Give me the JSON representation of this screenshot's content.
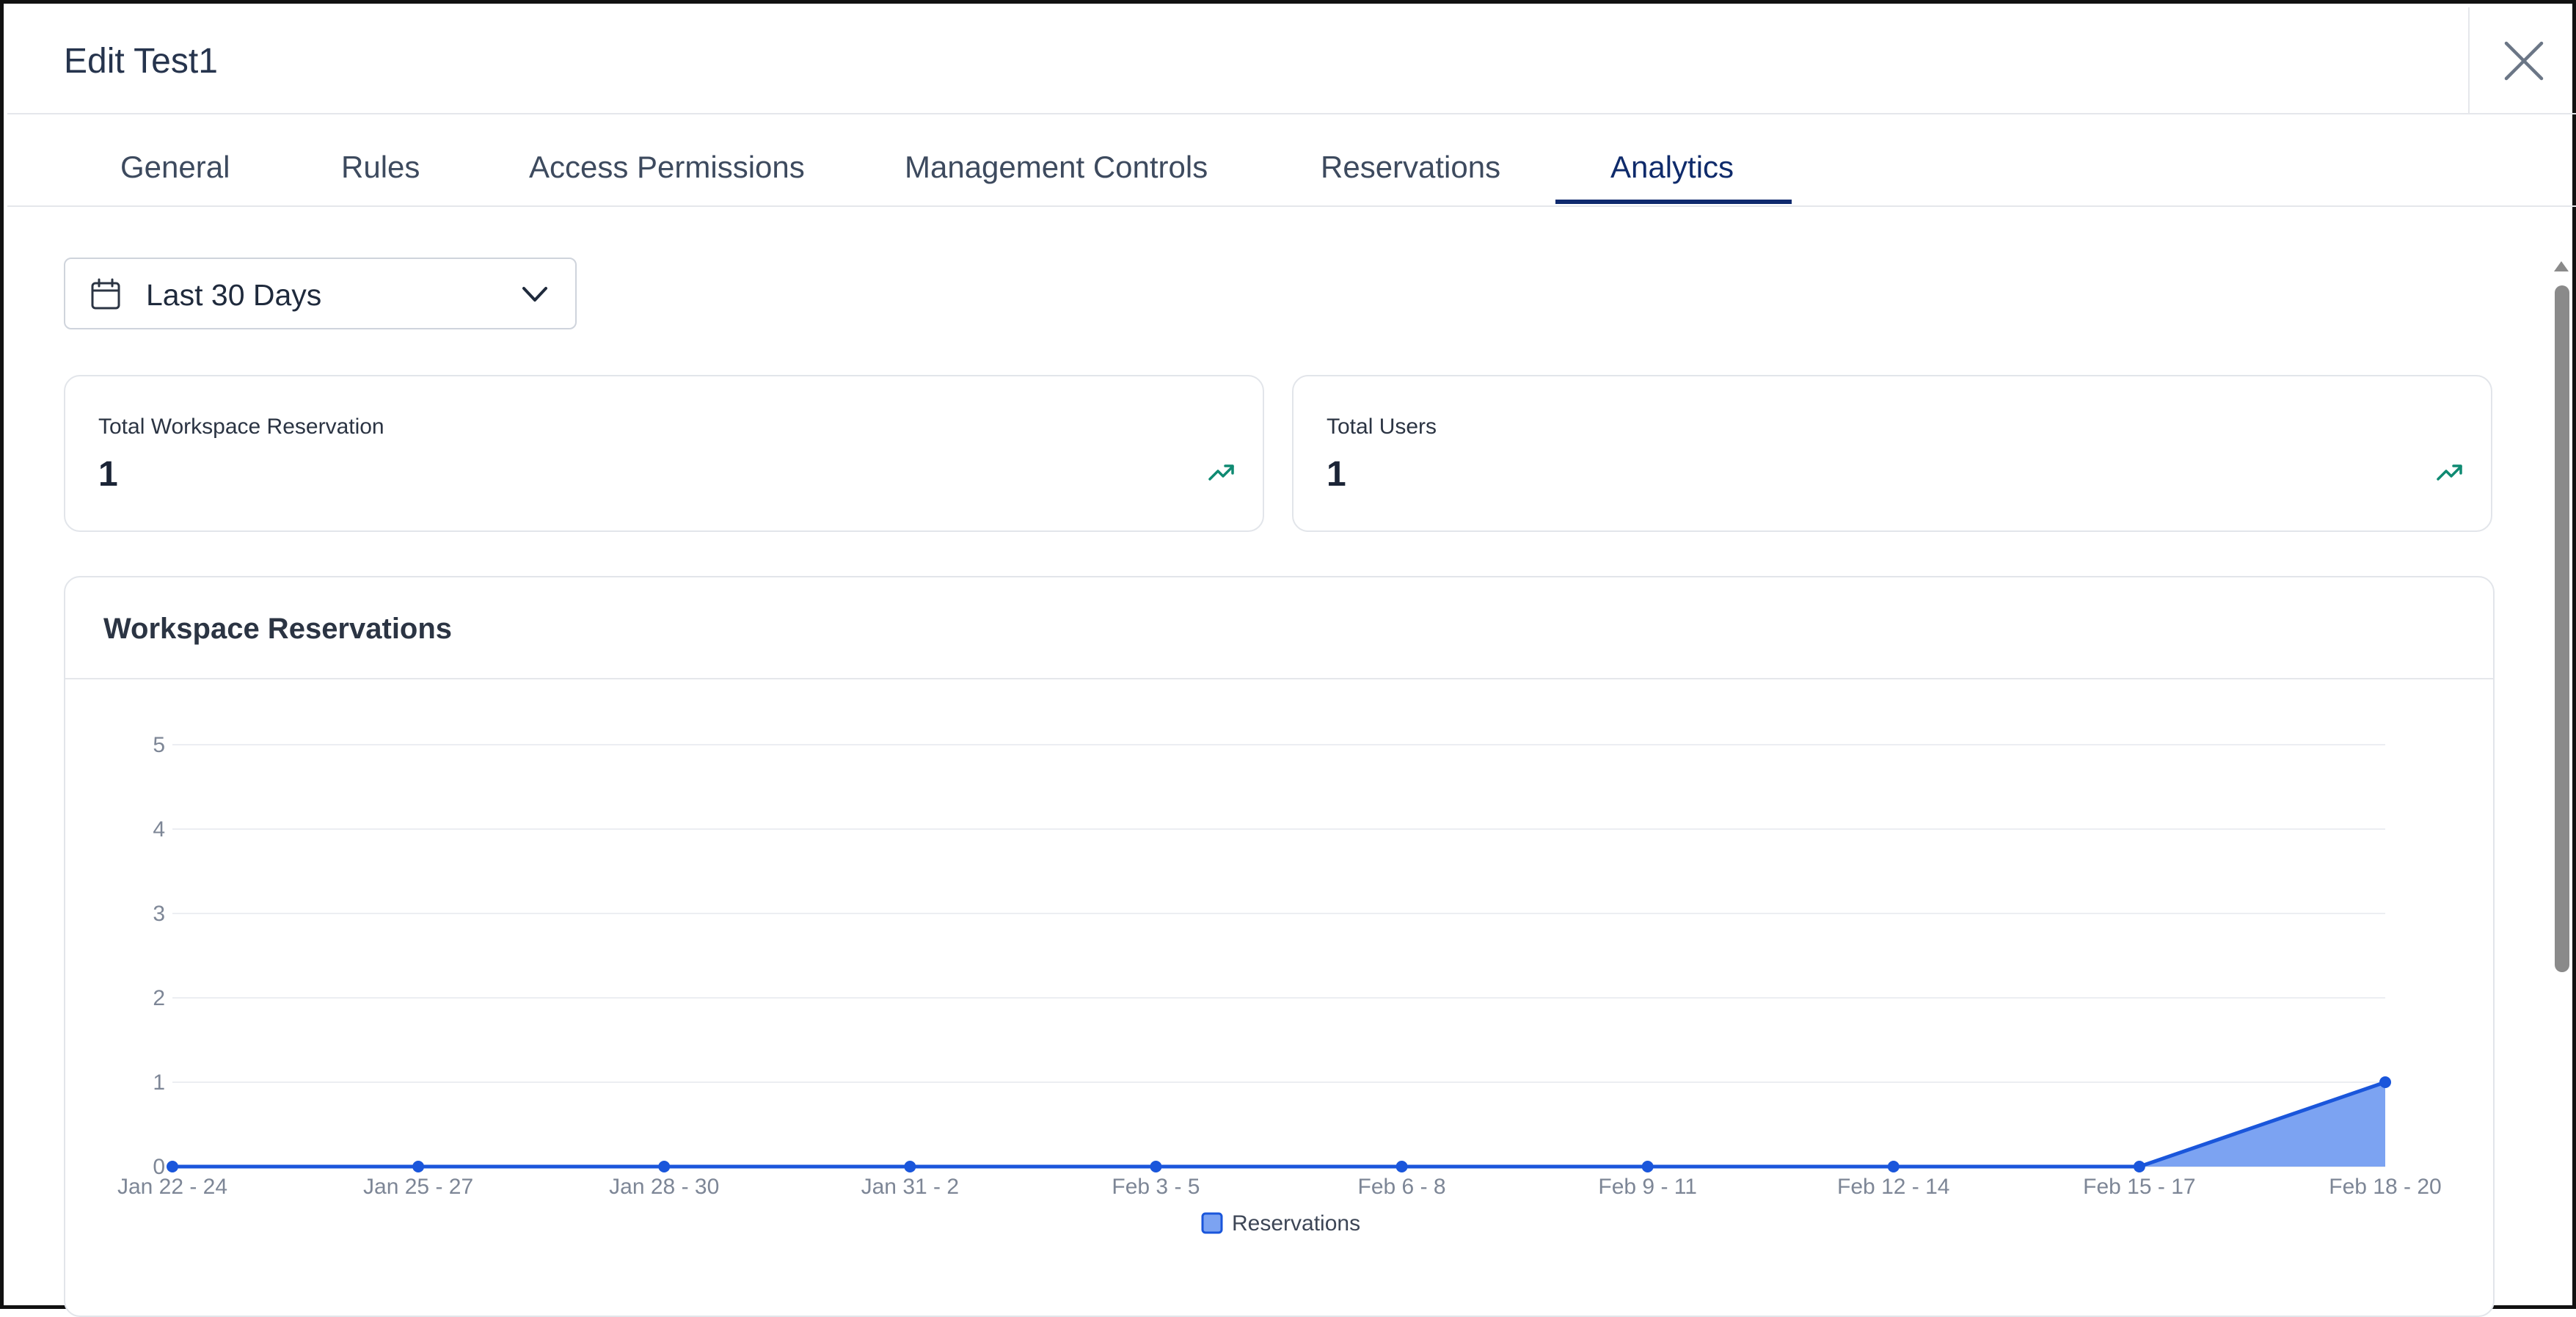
{
  "header": {
    "title": "Edit Test1"
  },
  "tabs": [
    {
      "label": "General"
    },
    {
      "label": "Rules"
    },
    {
      "label": "Access Permissions"
    },
    {
      "label": "Management Controls"
    },
    {
      "label": "Reservations"
    },
    {
      "label": "Analytics",
      "active": true
    }
  ],
  "date_range": {
    "selected": "Last 30 Days"
  },
  "stats": [
    {
      "label": "Total Workspace Reservation",
      "value": "1",
      "icon": "trending-up-icon"
    },
    {
      "label": "Total Users",
      "value": "1",
      "icon": "trending-up-icon"
    }
  ],
  "colors": {
    "accent": "#0f2a6e",
    "series_line": "#1a56db",
    "series_fill": "#7ca3f2",
    "trend_icon": "#0f8a72"
  },
  "chart_data": {
    "type": "area",
    "title": "Workspace Reservations",
    "categories": [
      "Jan 22 - 24",
      "Jan 25 - 27",
      "Jan 28 - 30",
      "Jan 31 - 2",
      "Feb 3 - 5",
      "Feb 6 - 8",
      "Feb 9 - 11",
      "Feb 12 - 14",
      "Feb 15 - 17",
      "Feb 18 - 20"
    ],
    "series": [
      {
        "name": "Reservations",
        "values": [
          0,
          0,
          0,
          0,
          0,
          0,
          0,
          0,
          0,
          1
        ]
      }
    ],
    "ylim": [
      0,
      5
    ],
    "yticks": [
      "0",
      "1",
      "2",
      "3",
      "4",
      "5"
    ],
    "grid": true,
    "legend": "bottom"
  }
}
